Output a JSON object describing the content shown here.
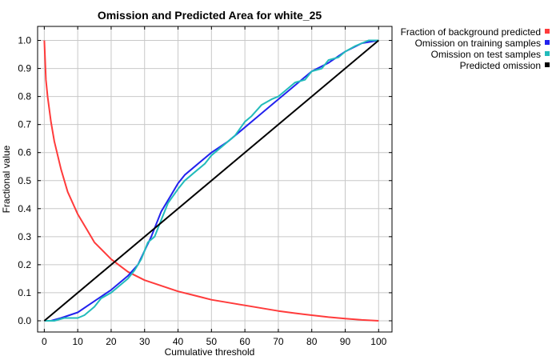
{
  "chart_data": {
    "type": "line",
    "title": "Omission and Predicted Area for white_25",
    "xlabel": "Cumulative threshold",
    "ylabel": "Fractional value",
    "xlim": [
      -2,
      104
    ],
    "ylim": [
      -0.04,
      1.05
    ],
    "xticks": [
      "0",
      "10",
      "20",
      "30",
      "40",
      "50",
      "60",
      "70",
      "80",
      "90",
      "100"
    ],
    "yticks": [
      "0.0",
      "0.1",
      "0.2",
      "0.3",
      "0.4",
      "0.5",
      "0.6",
      "0.7",
      "0.8",
      "0.9",
      "1.0"
    ],
    "grid": true,
    "legend_position": "outside-right",
    "series": [
      {
        "name": "Fraction of background predicted",
        "color": "#ff3b3b",
        "x": [
          0,
          0.5,
          1,
          2,
          3,
          5,
          7,
          10,
          13,
          15,
          20,
          25,
          30,
          35,
          40,
          45,
          50,
          55,
          60,
          65,
          70,
          75,
          80,
          85,
          90,
          95,
          100
        ],
        "y": [
          1.0,
          0.86,
          0.8,
          0.71,
          0.64,
          0.54,
          0.46,
          0.38,
          0.32,
          0.28,
          0.22,
          0.175,
          0.145,
          0.125,
          0.105,
          0.09,
          0.075,
          0.065,
          0.055,
          0.045,
          0.035,
          0.027,
          0.02,
          0.013,
          0.008,
          0.003,
          0.0
        ]
      },
      {
        "name": "Omission on training samples",
        "color": "#2222ee",
        "x": [
          0,
          2,
          5,
          10,
          15,
          20,
          25,
          28,
          30,
          32,
          35,
          38,
          40,
          42,
          45,
          50,
          55,
          60,
          65,
          70,
          75,
          80,
          85,
          90,
          95,
          100
        ],
        "y": [
          0.0,
          0.0,
          0.01,
          0.03,
          0.07,
          0.11,
          0.16,
          0.2,
          0.25,
          0.3,
          0.39,
          0.45,
          0.49,
          0.52,
          0.55,
          0.6,
          0.64,
          0.69,
          0.74,
          0.79,
          0.84,
          0.89,
          0.92,
          0.96,
          0.99,
          1.0
        ]
      },
      {
        "name": "Omission on test samples",
        "color": "#22bbbb",
        "x": [
          0,
          3,
          6,
          8,
          10,
          12,
          15,
          17,
          20,
          22,
          25,
          27,
          29,
          31,
          33,
          35,
          37,
          40,
          42,
          45,
          48,
          50,
          52,
          55,
          57,
          60,
          62,
          65,
          68,
          70,
          72,
          75,
          78,
          80,
          83,
          85,
          88,
          90,
          93,
          95,
          97,
          100
        ],
        "y": [
          0.0,
          0.0,
          0.01,
          0.01,
          0.01,
          0.02,
          0.05,
          0.08,
          0.1,
          0.12,
          0.15,
          0.18,
          0.22,
          0.28,
          0.3,
          0.36,
          0.42,
          0.47,
          0.5,
          0.53,
          0.56,
          0.59,
          0.61,
          0.64,
          0.66,
          0.71,
          0.73,
          0.77,
          0.79,
          0.8,
          0.82,
          0.85,
          0.86,
          0.89,
          0.9,
          0.93,
          0.94,
          0.96,
          0.98,
          0.99,
          1.0,
          1.0
        ]
      },
      {
        "name": "Predicted omission",
        "color": "#000000",
        "x": [
          0,
          100
        ],
        "y": [
          0,
          1
        ]
      }
    ]
  }
}
